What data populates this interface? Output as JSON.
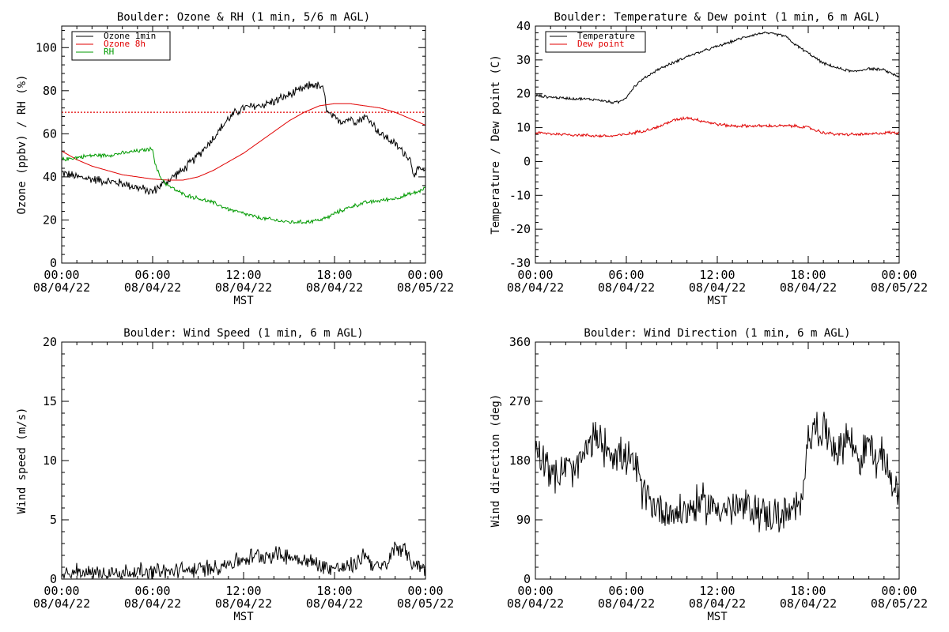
{
  "chart_data": [
    {
      "type": "line",
      "title": "Boulder: Ozone & RH (1 min, 5/6 m AGL)",
      "xlabel": "MST",
      "ylabel": "Ozone (ppbv) / RH (%)",
      "ylim": [
        0,
        110
      ],
      "yticks": [
        0,
        20,
        40,
        60,
        80,
        100
      ],
      "xticks": [
        {
          "hour": 0,
          "time": "00:00",
          "date": "08/04/22"
        },
        {
          "hour": 6,
          "time": "06:00",
          "date": "08/04/22"
        },
        {
          "hour": 12,
          "time": "12:00",
          "date": "08/04/22"
        },
        {
          "hour": 18,
          "time": "18:00",
          "date": "08/04/22"
        },
        {
          "hour": 24,
          "time": "00:00",
          "date": "08/05/22"
        }
      ],
      "legend_position": "top-left",
      "reference_lines": [
        {
          "y": 70,
          "color": "#e00000",
          "style": "dotted"
        }
      ],
      "series": [
        {
          "name": "Ozone 1min",
          "color": "#000000",
          "noise": 1.6,
          "x": [
            0,
            0.5,
            1,
            2,
            3,
            4,
            5,
            6,
            6.5,
            7,
            7.5,
            8,
            9,
            10,
            11,
            11.5,
            12,
            13,
            14,
            15,
            16,
            16.5,
            17,
            17.3,
            17.5,
            18,
            18.5,
            19,
            19.5,
            20,
            20.5,
            21,
            21.5,
            22,
            22.5,
            23,
            23.3,
            23.6,
            24
          ],
          "y": [
            42,
            41,
            40,
            39,
            38,
            37,
            35,
            33,
            36,
            38,
            41,
            43,
            50,
            58,
            67,
            70,
            72,
            73,
            75,
            78,
            81,
            83,
            82,
            80,
            70,
            67,
            66,
            67,
            66,
            68,
            65,
            60,
            58,
            55,
            52,
            48,
            40,
            44,
            42
          ]
        },
        {
          "name": "Ozone 8h",
          "color": "#e00000",
          "noise": 0,
          "x": [
            0,
            1,
            2,
            3,
            4,
            5,
            6,
            7,
            8,
            9,
            10,
            11,
            12,
            13,
            14,
            15,
            16,
            17,
            18,
            19,
            20,
            21,
            22,
            23,
            24
          ],
          "y": [
            52,
            48,
            45,
            43,
            41,
            40,
            39,
            38.5,
            38.5,
            40,
            43,
            47,
            51,
            56,
            61,
            66,
            70,
            73,
            74,
            74,
            73,
            72,
            70,
            67,
            64
          ]
        },
        {
          "name": "RH",
          "color": "#009a00",
          "noise": 0.7,
          "x": [
            0,
            1,
            2,
            3,
            4,
            5,
            6,
            6.2,
            6.5,
            7,
            8,
            9,
            10,
            11,
            12,
            13,
            14,
            15,
            16,
            17,
            17.5,
            18,
            19,
            20,
            21,
            22,
            22.5,
            23,
            23.5,
            24
          ],
          "y": [
            48,
            49,
            50,
            50,
            51,
            52,
            53,
            45,
            40,
            36,
            32,
            30,
            28,
            25,
            23,
            21,
            20,
            19,
            19,
            20,
            21,
            23,
            26,
            28,
            29,
            30,
            31,
            32,
            33,
            35
          ]
        }
      ]
    },
    {
      "type": "line",
      "title": "Boulder: Temperature & Dew point (1 min, 6 m AGL)",
      "xlabel": "MST",
      "ylabel": "Temperature / Dew point (C)",
      "ylim": [
        -30,
        40
      ],
      "yticks": [
        -30,
        -20,
        -10,
        0,
        10,
        20,
        30,
        40
      ],
      "xticks": [
        {
          "hour": 0,
          "time": "00:00",
          "date": "08/04/22"
        },
        {
          "hour": 6,
          "time": "06:00",
          "date": "08/04/22"
        },
        {
          "hour": 12,
          "time": "12:00",
          "date": "08/04/22"
        },
        {
          "hour": 18,
          "time": "18:00",
          "date": "08/04/22"
        },
        {
          "hour": 24,
          "time": "00:00",
          "date": "08/05/22"
        }
      ],
      "legend_position": "top-left",
      "series": [
        {
          "name": "Temperature",
          "color": "#000000",
          "noise": 0.3,
          "x": [
            0,
            1,
            2,
            3,
            4,
            5,
            5.5,
            6,
            6.5,
            7,
            8,
            9,
            10,
            11,
            12,
            13,
            14,
            15,
            16,
            16.5,
            17,
            18,
            19,
            20,
            21,
            22,
            23,
            24
          ],
          "y": [
            19.5,
            19,
            18.7,
            18.5,
            18.3,
            17.5,
            17.5,
            19,
            22,
            24,
            27,
            29,
            31,
            32.5,
            34,
            35.5,
            37,
            38,
            37.5,
            37,
            35,
            32,
            29,
            27.5,
            26.5,
            27.5,
            27,
            25
          ]
        },
        {
          "name": "Dew point",
          "color": "#e00000",
          "noise": 0.35,
          "x": [
            0,
            1,
            2,
            3,
            4,
            5,
            6,
            7,
            8,
            9,
            10,
            11,
            12,
            13,
            14,
            15,
            16,
            17,
            18,
            19,
            20,
            21,
            22,
            23,
            24
          ],
          "y": [
            8.5,
            8.2,
            8,
            7.8,
            7.6,
            7.5,
            8,
            9,
            10,
            12,
            13,
            12,
            11,
            10.5,
            10.5,
            10.5,
            10.5,
            10.5,
            10,
            8.5,
            8,
            8,
            8,
            8.5,
            8.5
          ]
        }
      ]
    },
    {
      "type": "line",
      "title": "Boulder: Wind Speed (1 min, 6 m AGL)",
      "xlabel": "MST",
      "ylabel": "Wind speed (m/s)",
      "ylim": [
        0,
        20
      ],
      "yticks": [
        0,
        5,
        10,
        15,
        20
      ],
      "xticks": [
        {
          "hour": 0,
          "time": "00:00",
          "date": "08/04/22"
        },
        {
          "hour": 6,
          "time": "06:00",
          "date": "08/04/22"
        },
        {
          "hour": 12,
          "time": "12:00",
          "date": "08/04/22"
        },
        {
          "hour": 18,
          "time": "18:00",
          "date": "08/04/22"
        },
        {
          "hour": 24,
          "time": "00:00",
          "date": "08/05/22"
        }
      ],
      "series": [
        {
          "color": "#000000",
          "noise": 0.55,
          "x": [
            0,
            1,
            2,
            3,
            4,
            5,
            6,
            7,
            8,
            9,
            10,
            11,
            12,
            13,
            14,
            15,
            16,
            17,
            18,
            19,
            19.5,
            20,
            20.5,
            21,
            21.5,
            22,
            22.5,
            23,
            23.5,
            24
          ],
          "y": [
            0.7,
            0.6,
            0.5,
            0.6,
            0.6,
            0.6,
            0.6,
            0.6,
            0.7,
            0.8,
            1.0,
            1.3,
            1.7,
            2.0,
            2.1,
            1.9,
            1.6,
            1.2,
            0.9,
            1.0,
            1.4,
            2.2,
            1.3,
            0.9,
            1.2,
            2.8,
            2.6,
            1.5,
            1.2,
            0.9
          ]
        }
      ]
    },
    {
      "type": "line",
      "title": "Boulder: Wind Direction (1 min, 6 m AGL)",
      "xlabel": "MST",
      "ylabel": "Wind direction (deg)",
      "ylim": [
        0,
        360
      ],
      "yticks": [
        0,
        90,
        180,
        270,
        360
      ],
      "xticks": [
        {
          "hour": 0,
          "time": "00:00",
          "date": "08/04/22"
        },
        {
          "hour": 6,
          "time": "06:00",
          "date": "08/04/22"
        },
        {
          "hour": 12,
          "time": "12:00",
          "date": "08/04/22"
        },
        {
          "hour": 18,
          "time": "18:00",
          "date": "08/04/22"
        },
        {
          "hour": 24,
          "time": "00:00",
          "date": "08/05/22"
        }
      ],
      "series": [
        {
          "color": "#000000",
          "noise": 22,
          "x": [
            0,
            0.5,
            1,
            1.5,
            2,
            2.5,
            3,
            3.5,
            4,
            4.5,
            5,
            5.5,
            6,
            6.5,
            7,
            7.5,
            8,
            9,
            10,
            11,
            12,
            13,
            14,
            15,
            16,
            17,
            17.5,
            18,
            18.5,
            19,
            19.5,
            20,
            20.5,
            21,
            21.5,
            22,
            22.5,
            23,
            23.5,
            24
          ],
          "y": [
            200,
            190,
            170,
            150,
            175,
            160,
            180,
            200,
            215,
            205,
            195,
            190,
            180,
            175,
            140,
            120,
            110,
            100,
            105,
            115,
            110,
            105,
            110,
            100,
            95,
            100,
            110,
            220,
            230,
            225,
            215,
            190,
            220,
            200,
            180,
            210,
            175,
            185,
            150,
            120
          ]
        }
      ]
    }
  ]
}
